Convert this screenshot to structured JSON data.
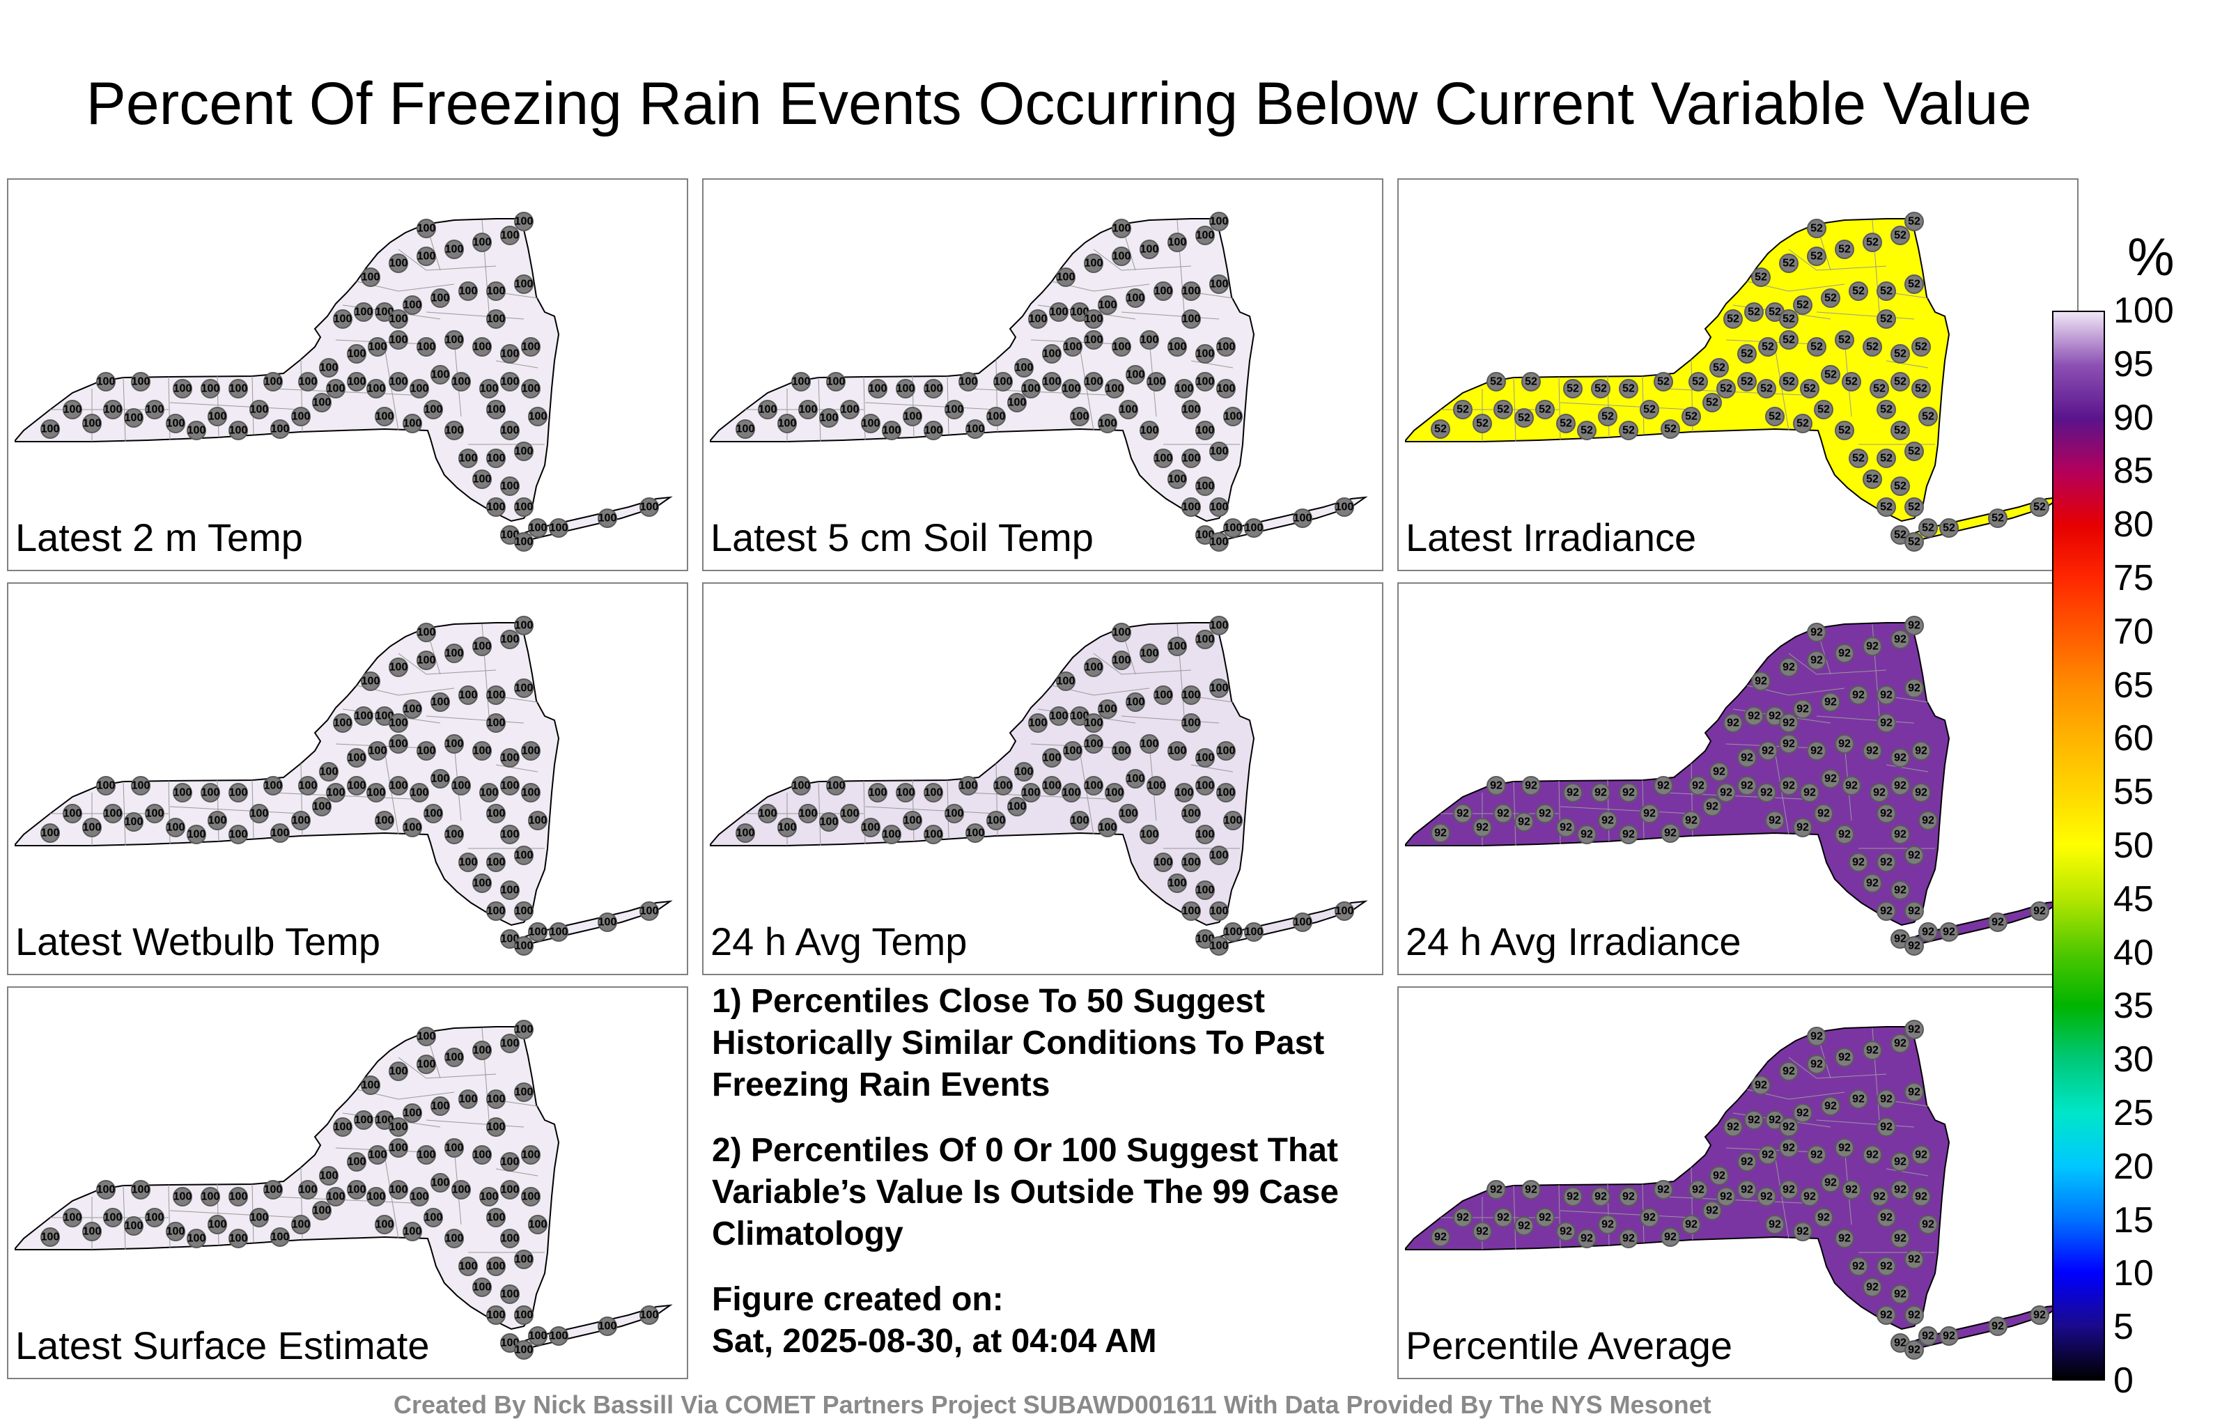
{
  "title": "Percent Of Freezing Rain Events Occurring Below Current Variable Value",
  "colorbar": {
    "unit": "%",
    "ticks": [
      "0",
      "5",
      "10",
      "15",
      "20",
      "25",
      "30",
      "35",
      "40",
      "45",
      "50",
      "55",
      "60",
      "65",
      "70",
      "75",
      "80",
      "85",
      "90",
      "95",
      "100"
    ],
    "stops": [
      "#000000",
      "#1a0a8c",
      "#0000ff",
      "#0073ff",
      "#00c8ff",
      "#00e6c8",
      "#00c878",
      "#00b400",
      "#50c800",
      "#b4e600",
      "#ffff00",
      "#ffd700",
      "#ffb400",
      "#ff8c00",
      "#ff5a00",
      "#ff2800",
      "#e60000",
      "#b4005a",
      "#5a148c",
      "#8c50b4",
      "#f0e6f5"
    ]
  },
  "panels": [
    {
      "label": "Latest 2 m Temp",
      "fill": "#f0ebf4",
      "value": "100"
    },
    {
      "label": "Latest 5 cm Soil Temp",
      "fill": "#f0ebf4",
      "value": "100"
    },
    {
      "label": "Latest Irradiance",
      "fill": "#ffff00",
      "value": "52"
    },
    {
      "label": "Latest Wetbulb Temp",
      "fill": "#f0ebf4",
      "value": "100"
    },
    {
      "label": "24 h Avg Temp",
      "fill": "#e9e0f0",
      "value": "100"
    },
    {
      "label": "24 h Avg Irradiance",
      "fill": "#7b35a3",
      "value": "92"
    },
    {
      "label": "Latest Surface Estimate",
      "fill": "#f0ebf4",
      "value": "100"
    },
    {
      "label": "Percentile Average",
      "fill": "#7b35a3",
      "value": "92"
    }
  ],
  "notes": {
    "note1": "1) Percentiles Close To 50 Suggest Historically Similar Conditions To Past Freezing Rain Events",
    "note2": "2) Percentiles Of 0 Or 100 Suggest That Variable’s Value Is Outside The 99 Case Climatology",
    "created_label": "Figure created on:",
    "created_date": "Sat, 2025-08-30, at 04:04 AM"
  },
  "footer": "Created By Nick Bassill Via COMET Partners Project SUBAWD001611 With Data Provided By The NYS Mesonet"
}
